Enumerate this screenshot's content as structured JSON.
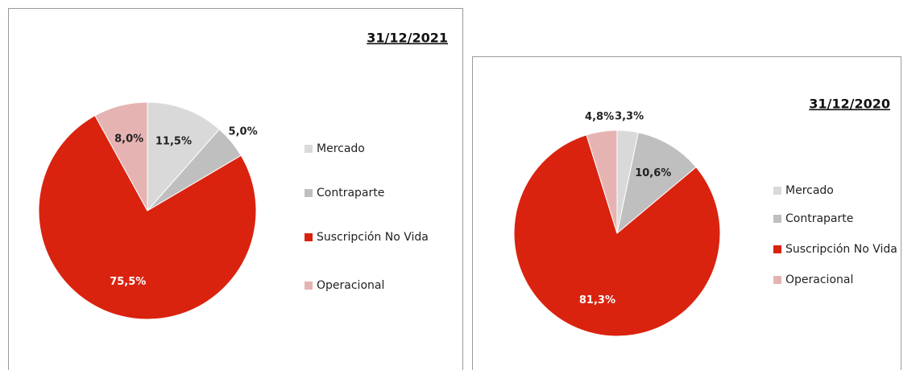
{
  "chart_data": [
    {
      "type": "pie",
      "title": "31/12/2021",
      "categories": [
        "Mercado",
        "Contraparte",
        "Suscripción No Vida",
        "Operacional"
      ],
      "values": [
        11.5,
        5.0,
        75.5,
        8.0
      ],
      "value_labels": [
        "11,5%",
        "5,0%",
        "75,5%",
        "8,0%"
      ],
      "colors": [
        "#d9d9d9",
        "#bfbfbf",
        "#d9230f",
        "#e6b3b3"
      ],
      "legend": "right"
    },
    {
      "type": "pie",
      "title": "31/12/2020",
      "categories": [
        "Mercado",
        "Contraparte",
        "Suscripción No Vida",
        "Operacional"
      ],
      "values": [
        3.3,
        10.6,
        81.3,
        4.8
      ],
      "value_labels": [
        "3,3%",
        "10,6%",
        "81,3%",
        "4,8%"
      ],
      "colors": [
        "#d9d9d9",
        "#bfbfbf",
        "#d9230f",
        "#e6b3b3"
      ],
      "legend": "right"
    }
  ]
}
